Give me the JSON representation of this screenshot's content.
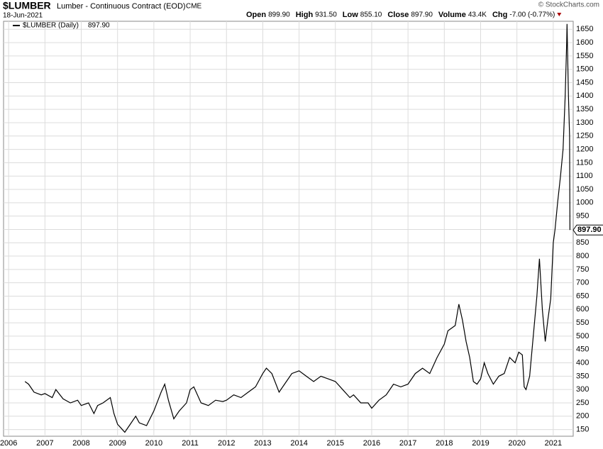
{
  "header": {
    "symbol": "$LUMBER",
    "name": "Lumber - Continuous Contract (EOD)",
    "exchange": "CME",
    "date": "18-Jun-2021",
    "stats": [
      {
        "label": "Open",
        "value": "899.90"
      },
      {
        "label": "High",
        "value": "931.50"
      },
      {
        "label": "Low",
        "value": "855.10"
      },
      {
        "label": "Close",
        "value": "897.90"
      },
      {
        "label": "Volume",
        "value": "43.4K"
      },
      {
        "label": "Chg",
        "value": "-7.00 (-0.77%)"
      }
    ],
    "brand": "© StockCharts.com"
  },
  "chart_data": {
    "type": "line",
    "x": [
      2006.45,
      2006.55,
      2006.7,
      2006.9,
      2007.0,
      2007.2,
      2007.3,
      2007.5,
      2007.7,
      2007.9,
      2008.0,
      2008.2,
      2008.35,
      2008.45,
      2008.6,
      2008.8,
      2008.9,
      2009.0,
      2009.1,
      2009.2,
      2009.35,
      2009.5,
      2009.6,
      2009.8,
      2010.0,
      2010.2,
      2010.3,
      2010.4,
      2010.55,
      2010.7,
      2010.9,
      2011.0,
      2011.1,
      2011.3,
      2011.5,
      2011.7,
      2011.9,
      2012.0,
      2012.2,
      2012.4,
      2012.6,
      2012.8,
      2013.0,
      2013.1,
      2013.25,
      2013.45,
      2013.6,
      2013.8,
      2014.0,
      2014.2,
      2014.4,
      2014.6,
      2014.8,
      2015.0,
      2015.2,
      2015.4,
      2015.5,
      2015.7,
      2015.9,
      2016.0,
      2016.2,
      2016.4,
      2016.6,
      2016.8,
      2017.0,
      2017.2,
      2017.4,
      2017.6,
      2017.8,
      2018.0,
      2018.1,
      2018.3,
      2018.4,
      2018.5,
      2018.6,
      2018.7,
      2018.8,
      2018.9,
      2019.0,
      2019.1,
      2019.2,
      2019.35,
      2019.5,
      2019.65,
      2019.8,
      2019.95,
      2020.05,
      2020.15,
      2020.2,
      2020.25,
      2020.35,
      2020.45,
      2020.55,
      2020.62,
      2020.7,
      2020.78,
      2020.85,
      2020.93,
      2021.0,
      2021.05,
      2021.12,
      2021.2,
      2021.27,
      2021.33,
      2021.37,
      2021.38,
      2021.42,
      2021.45,
      2021.46
    ],
    "series": [
      {
        "name": "$LUMBER (Daily)",
        "color": "#000000",
        "values": [
          330,
          320,
          290,
          280,
          285,
          270,
          300,
          265,
          250,
          260,
          240,
          250,
          210,
          240,
          250,
          270,
          210,
          170,
          155,
          140,
          170,
          200,
          175,
          165,
          220,
          290,
          320,
          260,
          190,
          220,
          250,
          300,
          310,
          250,
          240,
          260,
          255,
          260,
          280,
          270,
          290,
          310,
          360,
          380,
          360,
          290,
          320,
          360,
          370,
          350,
          330,
          350,
          340,
          330,
          300,
          270,
          280,
          250,
          250,
          230,
          260,
          280,
          320,
          310,
          320,
          360,
          380,
          360,
          420,
          470,
          520,
          540,
          620,
          560,
          480,
          420,
          330,
          320,
          340,
          400,
          360,
          320,
          350,
          360,
          420,
          400,
          440,
          430,
          310,
          300,
          350,
          500,
          650,
          790,
          600,
          480,
          560,
          640,
          850,
          900,
          1000,
          1100,
          1200,
          1400,
          1600,
          1670,
          1400,
          1250,
          897.9
        ]
      }
    ],
    "last_value_label": "897.90",
    "xlim": [
      2005.86,
      2021.55
    ],
    "xticks": [
      2006,
      2007,
      2008,
      2009,
      2010,
      2011,
      2012,
      2013,
      2014,
      2015,
      2016,
      2017,
      2018,
      2019,
      2020,
      2021
    ],
    "ylim": [
      125,
      1680
    ],
    "yticks": [
      150,
      200,
      250,
      300,
      350,
      400,
      450,
      500,
      550,
      600,
      650,
      700,
      750,
      800,
      850,
      900,
      950,
      1000,
      1050,
      1100,
      1150,
      1200,
      1250,
      1300,
      1350,
      1400,
      1450,
      1500,
      1550,
      1600,
      1650
    ],
    "grid": true
  }
}
